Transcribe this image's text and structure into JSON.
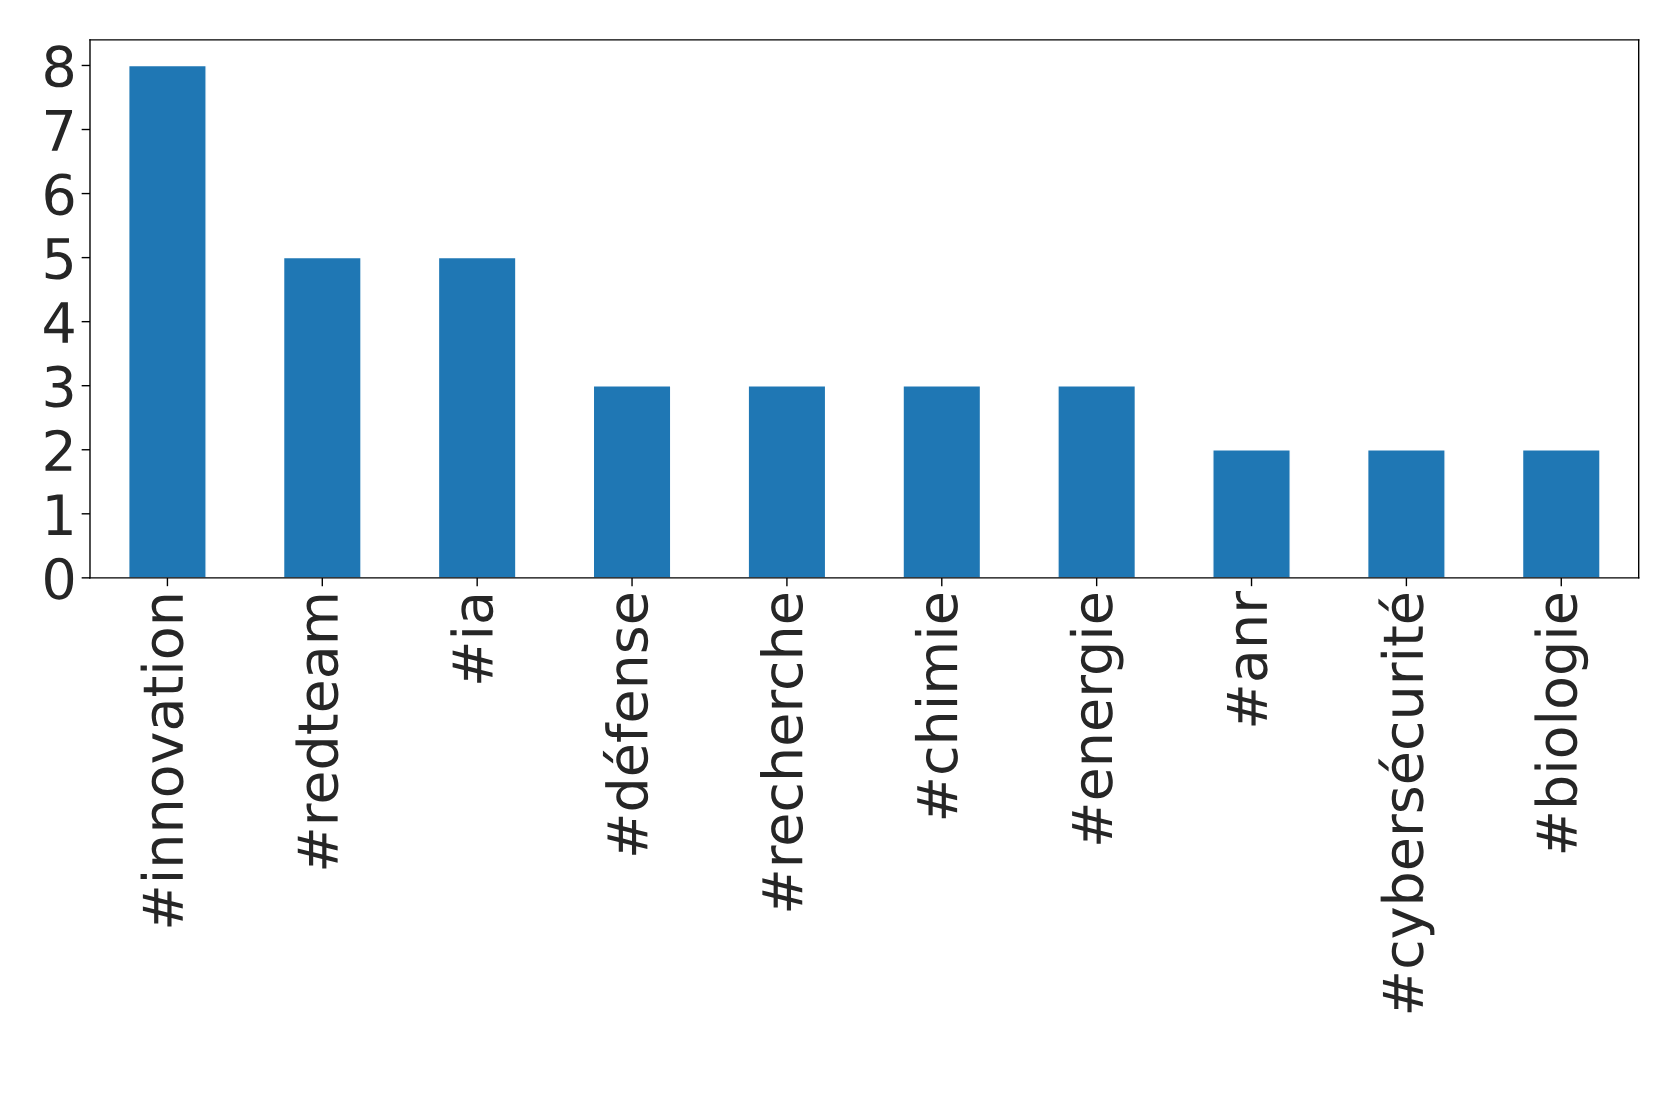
{
  "chart_data": {
    "type": "bar",
    "categories": [
      "#innovation",
      "#redteam",
      "#ia",
      "#défense",
      "#recherche",
      "#chimie",
      "#energie",
      "#anr",
      "#cybersécurité",
      "#biologie"
    ],
    "values": [
      8,
      5,
      5,
      3,
      3,
      3,
      3,
      2,
      2,
      2
    ],
    "color": "#1f77b4",
    "ylim": [
      0,
      8.4
    ],
    "yticks": [
      0,
      1,
      2,
      3,
      4,
      5,
      6,
      7,
      8
    ],
    "grid": false,
    "legend": false
  }
}
